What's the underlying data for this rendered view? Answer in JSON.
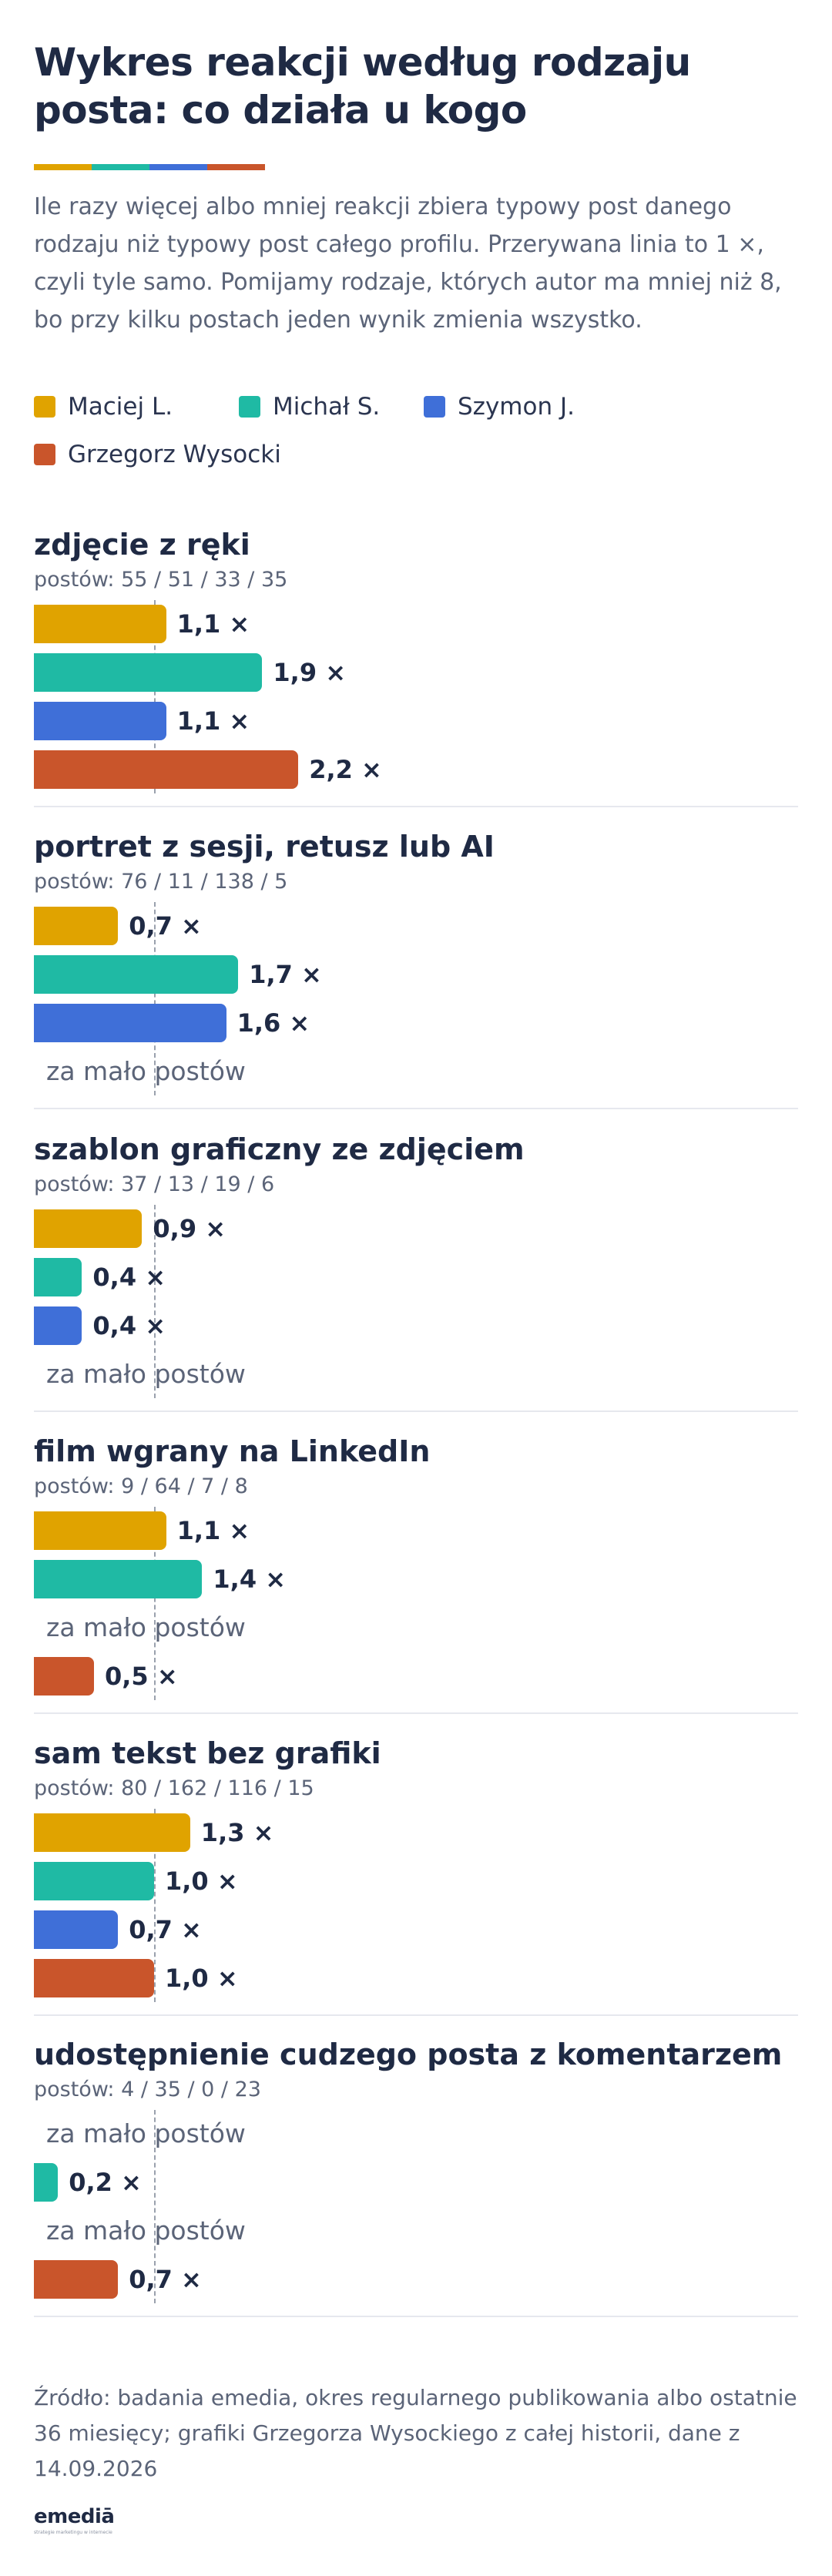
{
  "title": "Wykres reakcji według rodzaju posta: co działa u kogo",
  "subtitle": "Ile razy więcej albo mniej reakcji zbiera typowy post danego rodzaju niż typowy post całego profilu. Przerywana linia to 1 ×, czyli tyle samo. Pomijamy rodzaje, których autor ma mniej niż 8, bo przy kilku postach jeden wynik zmienia wszystko.",
  "colors": {
    "maciej": "#E0A300",
    "michal": "#1FBAA4",
    "szymon": "#3F6FD8",
    "grzegorz": "#C9552B"
  },
  "missing_label": "za mało postów",
  "source": "Źródło: badania emedia, okres regularnego publikowania albo ostatnie 36 miesięcy; grafiki Grzegorza Wysockiego z całej historii, dane z 14.09.2026",
  "logo": {
    "name": "emediā",
    "tagline": "strategie marketingu w internecie"
  },
  "chart_data": {
    "type": "bar",
    "orientation": "horizontal",
    "baseline": 1.0,
    "series": [
      {
        "name": "Maciej L.",
        "color": "#E0A300"
      },
      {
        "name": "Michał S.",
        "color": "#1FBAA4"
      },
      {
        "name": "Szymon J.",
        "color": "#3F6FD8"
      },
      {
        "name": "Grzegorz Wysocki",
        "color": "#C9552B"
      }
    ],
    "categories": [
      {
        "name": "zdjęcie z ręki",
        "counts": "postów: 55 / 51 / 33 / 35",
        "values": [
          1.1,
          1.9,
          1.1,
          2.2
        ],
        "labels": [
          "1,1 ×",
          "1,9 ×",
          "1,1 ×",
          "2,2 ×"
        ]
      },
      {
        "name": "portret z sesji, retusz lub AI",
        "counts": "postów: 76 / 11 / 138 / 5",
        "values": [
          0.7,
          1.7,
          1.6,
          null
        ],
        "labels": [
          "0,7 ×",
          "1,7 ×",
          "1,6 ×",
          null
        ]
      },
      {
        "name": "szablon graficzny ze zdjęciem",
        "counts": "postów: 37 / 13 / 19 / 6",
        "values": [
          0.9,
          0.4,
          0.4,
          null
        ],
        "labels": [
          "0,9 ×",
          "0,4 ×",
          "0,4 ×",
          null
        ]
      },
      {
        "name": "film wgrany na LinkedIn",
        "counts": "postów: 9 / 64 / 7 / 8",
        "values": [
          1.1,
          1.4,
          null,
          0.5
        ],
        "labels": [
          "1,1 ×",
          "1,4 ×",
          null,
          "0,5 ×"
        ]
      },
      {
        "name": "sam tekst bez grafiki",
        "counts": "postów: 80 / 162 / 116 / 15",
        "values": [
          1.3,
          1.0,
          0.7,
          1.0
        ],
        "labels": [
          "1,3 ×",
          "1,0 ×",
          "0,7 ×",
          "1,0 ×"
        ]
      },
      {
        "name": "udostępnienie cudzego posta z komentarzem",
        "counts": "postów: 4 / 35 / 0 / 23",
        "values": [
          null,
          0.2,
          null,
          0.7
        ],
        "labels": [
          null,
          "0,2 ×",
          null,
          "0,7 ×"
        ]
      }
    ]
  }
}
